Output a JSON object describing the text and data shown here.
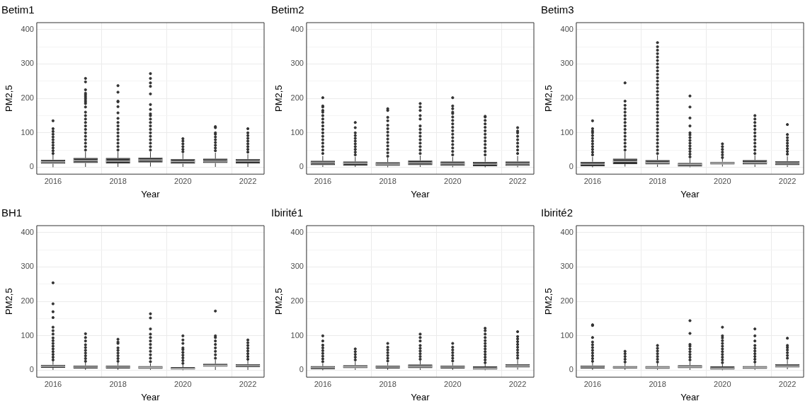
{
  "chart_data": [
    {
      "type": "box",
      "title": "Betim1",
      "xlabel": "Year",
      "ylabel": "PM2,5",
      "categories": [
        "2016",
        null,
        "2018",
        null,
        "2020",
        null,
        "2022"
      ],
      "ylim": [
        -20,
        420
      ],
      "yticks": [
        0,
        {
          "value": 50,
          "label": null
        },
        100,
        {
          "value": 150,
          "label": null
        },
        200,
        {
          "value": 250,
          "label": null
        },
        300,
        {
          "value": 350,
          "label": null
        },
        400
      ],
      "grid": true,
      "series": [
        {
          "color": "#333333",
          "boxes": [
            {
              "low": 0,
              "q1": 10,
              "median": 16,
              "q3": 22,
              "high": 36,
              "outliers": [
                40,
                48,
                56,
                64,
                72,
                80,
                88,
                96,
                104,
                112,
                135
              ]
            },
            {
              "low": 1,
              "q1": 12,
              "median": 19,
              "q3": 27,
              "high": 45,
              "outliers": [
                50,
                60,
                70,
                80,
                90,
                100,
                110,
                120,
                130,
                140,
                150,
                160,
                175,
                185,
                190,
                195,
                200,
                205,
                210,
                215,
                225,
                248,
                258
              ]
            },
            {
              "low": 1,
              "q1": 11,
              "median": 18,
              "q3": 27,
              "high": 45,
              "outliers": [
                50,
                60,
                70,
                80,
                90,
                100,
                110,
                120,
                130,
                142,
                158,
                176,
                190,
                192,
                218,
                237
              ]
            },
            {
              "low": 2,
              "q1": 14,
              "median": 21,
              "q3": 28,
              "high": 45,
              "outliers": [
                50,
                60,
                70,
                80,
                90,
                100,
                110,
                120,
                130,
                140,
                150,
                155,
                168,
                182,
                213,
                235,
                245,
                258,
                272
              ]
            },
            {
              "low": 1,
              "q1": 10,
              "median": 17,
              "q3": 24,
              "high": 40,
              "outliers": [
                45,
                52,
                60,
                68,
                76,
                83
              ]
            },
            {
              "low": 1,
              "q1": 12,
              "median": 18,
              "q3": 25,
              "high": 42,
              "outliers": [
                48,
                56,
                64,
                72,
                80,
                88,
                96,
                100,
                115,
                118
              ]
            },
            {
              "low": 1,
              "q1": 11,
              "median": 18,
              "q3": 24,
              "high": 38,
              "outliers": [
                44,
                52,
                60,
                68,
                76,
                84,
                92,
                100,
                112
              ]
            }
          ]
        }
      ]
    },
    {
      "type": "box",
      "title": "Betim2",
      "xlabel": "Year",
      "ylabel": "PM2,5",
      "categories": [
        "2016",
        null,
        "2018",
        null,
        "2020",
        null,
        "2022"
      ],
      "ylim": [
        -20,
        420
      ],
      "yticks": [
        0,
        {
          "value": 50,
          "label": null
        },
        100,
        {
          "value": 150,
          "label": null
        },
        200,
        {
          "value": 250,
          "label": null
        },
        300,
        {
          "value": 350,
          "label": null
        },
        400
      ],
      "grid": true,
      "series": [
        {
          "color": "#333333",
          "boxes": [
            {
              "low": 1,
              "q1": 6,
              "median": 13,
              "q3": 19,
              "high": 33,
              "outliers": [
                40,
                50,
                60,
                70,
                80,
                90,
                100,
                110,
                120,
                130,
                140,
                150,
                160,
                165,
                175,
                178,
                202
              ]
            },
            {
              "low": 1,
              "q1": 5,
              "median": 11,
              "q3": 17,
              "high": 30,
              "outliers": [
                36,
                44,
                52,
                60,
                68,
                76,
                84,
                92,
                100,
                115,
                130
              ]
            },
            {
              "low": 0,
              "q1": 4,
              "median": 9,
              "q3": 15,
              "high": 27,
              "outliers": [
                32,
                42,
                52,
                62,
                72,
                82,
                92,
                102,
                112,
                122,
                135,
                145,
                165,
                170
              ]
            },
            {
              "low": 1,
              "q1": 6,
              "median": 13,
              "q3": 20,
              "high": 34,
              "outliers": [
                40,
                50,
                60,
                70,
                80,
                90,
                100,
                110,
                120,
                140,
                150,
                165,
                175,
                185
              ]
            },
            {
              "low": 0,
              "q1": 4,
              "median": 10,
              "q3": 17,
              "high": 30,
              "outliers": [
                36,
                46,
                56,
                66,
                76,
                86,
                96,
                106,
                116,
                126,
                136,
                146,
                156,
                160,
                170,
                178,
                202
              ]
            },
            {
              "low": 0,
              "q1": 3,
              "median": 9,
              "q3": 16,
              "high": 30,
              "outliers": [
                36,
                46,
                56,
                66,
                76,
                86,
                96,
                106,
                116,
                126,
                136,
                146,
                148
              ]
            },
            {
              "low": 0,
              "q1": 4,
              "median": 10,
              "q3": 17,
              "high": 33,
              "outliers": [
                40,
                50,
                60,
                70,
                80,
                90,
                100,
                105,
                115
              ]
            }
          ]
        }
      ]
    },
    {
      "type": "box",
      "title": "Betim3",
      "xlabel": "Year",
      "ylabel": "PM2,5",
      "categories": [
        "2016",
        null,
        "2018",
        null,
        "2020",
        null,
        "2022"
      ],
      "ylim": [
        -20,
        420
      ],
      "yticks": [
        0,
        {
          "value": 50,
          "label": null
        },
        100,
        {
          "value": 150,
          "label": null
        },
        200,
        {
          "value": 250,
          "label": null
        },
        300,
        {
          "value": 350,
          "label": null
        },
        400
      ],
      "grid": true,
      "series": [
        {
          "color": "#333333",
          "boxes": [
            {
              "low": 0,
              "q1": 3,
              "median": 9,
              "q3": 16,
              "high": 30,
              "outliers": [
                36,
                44,
                52,
                60,
                68,
                76,
                84,
                92,
                100,
                105,
                112,
                135
              ]
            },
            {
              "low": 2,
              "q1": 9,
              "median": 17,
              "q3": 25,
              "high": 45,
              "outliers": [
                50,
                60,
                70,
                80,
                90,
                100,
                110,
                120,
                130,
                140,
                150,
                160,
                170,
                180,
                192,
                245
              ]
            },
            {
              "low": 1,
              "q1": 8,
              "median": 14,
              "q3": 21,
              "high": 35,
              "outliers": [
                40,
                50,
                60,
                70,
                80,
                90,
                100,
                110,
                120,
                130,
                140,
                150,
                160,
                170,
                180,
                190,
                200,
                210,
                220,
                230,
                240,
                250,
                260,
                270,
                280,
                290,
                300,
                310,
                320,
                330,
                340,
                350,
                362
              ]
            },
            {
              "low": 0,
              "q1": 2,
              "median": 8,
              "q3": 13,
              "high": 25,
              "outliers": [
                30,
                38,
                46,
                54,
                62,
                70,
                78,
                86,
                94,
                100,
                120,
                143,
                175,
                207
              ]
            },
            {
              "low": 2,
              "q1": 8,
              "median": 12,
              "q3": 16,
              "high": 24,
              "outliers": [
                28,
                36,
                44,
                52,
                60,
                68
              ]
            },
            {
              "low": 1,
              "q1": 8,
              "median": 14,
              "q3": 21,
              "high": 35,
              "outliers": [
                40,
                50,
                60,
                70,
                80,
                90,
                100,
                110,
                120,
                130,
                140,
                150
              ]
            },
            {
              "low": 1,
              "q1": 6,
              "median": 12,
              "q3": 18,
              "high": 32,
              "outliers": [
                38,
                46,
                54,
                62,
                70,
                78,
                86,
                95,
                124
              ]
            }
          ]
        }
      ]
    },
    {
      "type": "box",
      "title": "BH1",
      "xlabel": "Year",
      "ylabel": "PM2,5",
      "categories": [
        "2016",
        null,
        "2018",
        null,
        "2020",
        null,
        "2022"
      ],
      "ylim": [
        -20,
        420
      ],
      "yticks": [
        0,
        {
          "value": 50,
          "label": null
        },
        100,
        {
          "value": 150,
          "label": null
        },
        200,
        {
          "value": 250,
          "label": null
        },
        300,
        {
          "value": 350,
          "label": null
        },
        400
      ],
      "grid": true,
      "series": [
        {
          "color": "#333333",
          "boxes": [
            {
              "low": 1,
              "q1": 7,
              "median": 11,
              "q3": 16,
              "high": 26,
              "outliers": [
                30,
                38,
                46,
                54,
                62,
                70,
                78,
                86,
                94,
                105,
                115,
                125,
                153,
                170,
                193,
                254
              ]
            },
            {
              "low": 1,
              "q1": 5,
              "median": 9,
              "q3": 14,
              "high": 22,
              "outliers": [
                26,
                34,
                42,
                50,
                58,
                66,
                74,
                85,
                95,
                106
              ]
            },
            {
              "low": 1,
              "q1": 5,
              "median": 9,
              "q3": 14,
              "high": 22,
              "outliers": [
                26,
                34,
                42,
                50,
                58,
                65,
                78,
                82,
                90
              ]
            },
            {
              "low": 1,
              "q1": 4,
              "median": 8,
              "q3": 12,
              "high": 20,
              "outliers": [
                25,
                35,
                45,
                55,
                65,
                75,
                85,
                95,
                105,
                120,
                152,
                164
              ]
            },
            {
              "low": 0,
              "q1": 2,
              "median": 5,
              "q3": 9,
              "high": 16,
              "outliers": [
                20,
                28,
                36,
                44,
                52,
                60,
                65,
                78,
                88,
                100
              ]
            },
            {
              "low": 1,
              "q1": 10,
              "median": 14,
              "q3": 19,
              "high": 30,
              "outliers": [
                35,
                45,
                55,
                65,
                75,
                85,
                95,
                100,
                172
              ]
            },
            {
              "low": 1,
              "q1": 9,
              "median": 13,
              "q3": 18,
              "high": 28,
              "outliers": [
                32,
                40,
                48,
                56,
                64,
                72,
                80,
                88
              ]
            }
          ]
        }
      ]
    },
    {
      "type": "box",
      "title": "Ibirité1",
      "xlabel": "Year",
      "ylabel": "PM2,5",
      "categories": [
        "2016",
        null,
        "2018",
        null,
        "2020",
        null,
        "2022"
      ],
      "ylim": [
        -20,
        420
      ],
      "yticks": [
        0,
        {
          "value": 50,
          "label": null
        },
        100,
        {
          "value": 150,
          "label": null
        },
        200,
        {
          "value": 250,
          "label": null
        },
        300,
        {
          "value": 350,
          "label": null
        },
        400
      ],
      "grid": true,
      "series": [
        {
          "color": "#333333",
          "boxes": [
            {
              "low": 0,
              "q1": 3,
              "median": 7,
              "q3": 12,
              "high": 20,
              "outliers": [
                25,
                33,
                41,
                49,
                57,
                65,
                73,
                85,
                100
              ]
            },
            {
              "low": 1,
              "q1": 6,
              "median": 10,
              "q3": 15,
              "high": 25,
              "outliers": [
                30,
                38,
                46,
                54,
                62
              ]
            },
            {
              "low": 1,
              "q1": 5,
              "median": 9,
              "q3": 14,
              "high": 22,
              "outliers": [
                27,
                35,
                43,
                51,
                59,
                67,
                78
              ]
            },
            {
              "low": 1,
              "q1": 6,
              "median": 11,
              "q3": 17,
              "high": 28,
              "outliers": [
                32,
                40,
                48,
                56,
                64,
                72,
                85,
                95,
                105
              ]
            },
            {
              "low": 1,
              "q1": 5,
              "median": 9,
              "q3": 14,
              "high": 22,
              "outliers": [
                27,
                35,
                43,
                51,
                59,
                67,
                78
              ]
            },
            {
              "low": 0,
              "q1": 2,
              "median": 6,
              "q3": 11,
              "high": 18,
              "outliers": [
                22,
                30,
                38,
                46,
                54,
                62,
                70,
                78,
                86,
                95,
                105,
                115,
                122
              ]
            },
            {
              "low": 2,
              "q1": 8,
              "median": 13,
              "q3": 18,
              "high": 30,
              "outliers": [
                35,
                43,
                51,
                59,
                67,
                75,
                83,
                91,
                98,
                112
              ]
            }
          ]
        }
      ]
    },
    {
      "type": "box",
      "title": "Ibirité2",
      "xlabel": "Year",
      "ylabel": "PM2,5",
      "categories": [
        "2016",
        null,
        "2018",
        null,
        "2020",
        null,
        "2022"
      ],
      "ylim": [
        -20,
        420
      ],
      "yticks": [
        0,
        {
          "value": 50,
          "label": null
        },
        100,
        {
          "value": 150,
          "label": null
        },
        200,
        {
          "value": 250,
          "label": null
        },
        300,
        {
          "value": 350,
          "label": null
        },
        400
      ],
      "grid": true,
      "series": [
        {
          "color": "#333333",
          "boxes": [
            {
              "low": 1,
              "q1": 5,
              "median": 9,
              "q3": 14,
              "high": 22,
              "outliers": [
                26,
                34,
                42,
                50,
                58,
                66,
                74,
                82,
                95,
                130,
                132
              ]
            },
            {
              "low": 1,
              "q1": 5,
              "median": 8,
              "q3": 12,
              "high": 20,
              "outliers": [
                24,
                32,
                40,
                48,
                55
              ]
            },
            {
              "low": 1,
              "q1": 4,
              "median": 8,
              "q3": 12,
              "high": 20,
              "outliers": [
                24,
                32,
                40,
                48,
                56,
                64,
                72
              ]
            },
            {
              "low": 1,
              "q1": 6,
              "median": 10,
              "q3": 15,
              "high": 25,
              "outliers": [
                30,
                38,
                46,
                54,
                62,
                70,
                75,
                107,
                144
              ]
            },
            {
              "low": 0,
              "q1": 2,
              "median": 6,
              "q3": 11,
              "high": 18,
              "outliers": [
                22,
                30,
                38,
                46,
                54,
                62,
                70,
                78,
                86,
                94,
                100,
                125
              ]
            },
            {
              "low": 1,
              "q1": 4,
              "median": 8,
              "q3": 12,
              "high": 20,
              "outliers": [
                24,
                32,
                40,
                48,
                56,
                64,
                72,
                85,
                100,
                120
              ]
            },
            {
              "low": 3,
              "q1": 8,
              "median": 12,
              "q3": 18,
              "high": 30,
              "outliers": [
                35,
                43,
                51,
                59,
                66,
                72,
                93
              ]
            }
          ]
        }
      ]
    }
  ]
}
